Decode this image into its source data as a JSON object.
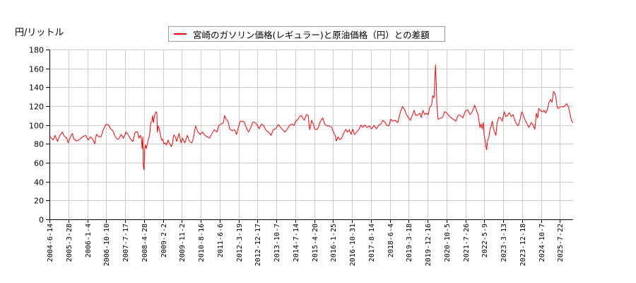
{
  "legend": {
    "label": "宮崎のガソリン価格(レギュラー)と原油価格（円）との差額",
    "color": "#ff0000"
  },
  "chart_data": {
    "type": "line",
    "title": "",
    "xlabel": "",
    "ylabel": "円/リットル",
    "ylim": [
      0,
      180
    ],
    "yticks": [
      0,
      20,
      40,
      60,
      80,
      100,
      120,
      140,
      160,
      180
    ],
    "x_unit": "decimal_year",
    "xlim": [
      2004.45,
      2026.1
    ],
    "xticks": [
      "2004-6-14",
      "2005-3-28",
      "2006-1-4",
      "2006-10-10",
      "2007-7-17",
      "2008-4-28",
      "2009-2-2",
      "2009-11-2",
      "2010-8-16",
      "2011-6-6",
      "2012-3-19",
      "2012-12-17",
      "2013-10-7",
      "2014-7-14",
      "2015-4-20",
      "2016-1-25",
      "2016-10-31",
      "2017-8-14",
      "2018-6-4",
      "2019-3-18",
      "2019-12-16",
      "2020-10-5",
      "2021-7-26",
      "2022-5-9",
      "2023-3-13",
      "2023-12-18",
      "2024-10-7",
      "2025-7-22"
    ],
    "grid": true,
    "legend_position": "top-center",
    "series": [
      {
        "name": "宮崎のガソリン価格(レギュラー)と原油価格（円）との差額",
        "color": "#ff0000",
        "x": [
          2004.47,
          2004.54,
          2004.6,
          2004.68,
          2004.78,
          2004.88,
          2004.98,
          2005.07,
          2005.17,
          2005.22,
          2005.32,
          2005.39,
          2005.46,
          2005.56,
          2005.66,
          2005.76,
          2005.85,
          2005.95,
          2006.05,
          2006.14,
          2006.24,
          2006.32,
          2006.39,
          2006.49,
          2006.58,
          2006.68,
          2006.78,
          2006.88,
          2006.97,
          2007.07,
          2007.17,
          2007.26,
          2007.31,
          2007.41,
          2007.51,
          2007.61,
          2007.7,
          2007.8,
          2007.9,
          2007.99,
          2008.09,
          2008.15,
          2008.2,
          2008.25,
          2008.28,
          2008.31,
          2008.33,
          2008.36,
          2008.39,
          2008.42,
          2008.46,
          2008.5,
          2008.54,
          2008.59,
          2008.64,
          2008.69,
          2008.72,
          2008.75,
          2008.8,
          2008.83,
          2008.86,
          2008.89,
          2008.91,
          2008.95,
          2008.99,
          2009.03,
          2009.08,
          2009.13,
          2009.18,
          2009.22,
          2009.29,
          2009.35,
          2009.42,
          2009.49,
          2009.54,
          2009.59,
          2009.66,
          2009.71,
          2009.81,
          2009.89,
          2009.95,
          2010.05,
          2010.15,
          2010.24,
          2010.34,
          2010.41,
          2010.49,
          2010.59,
          2010.68,
          2010.78,
          2010.88,
          2010.97,
          2011.07,
          2011.17,
          2011.27,
          2011.37,
          2011.46,
          2011.56,
          2011.64,
          2011.69,
          2011.76,
          2011.83,
          2011.9,
          2012.0,
          2012.1,
          2012.19,
          2012.26,
          2012.34,
          2012.44,
          2012.52,
          2012.58,
          2012.68,
          2012.78,
          2012.85,
          2012.94,
          2013.04,
          2013.12,
          2013.22,
          2013.31,
          2013.41,
          2013.51,
          2013.61,
          2013.7,
          2013.8,
          2013.92,
          2014.0,
          2014.09,
          2014.19,
          2014.29,
          2014.39,
          2014.48,
          2014.56,
          2014.63,
          2014.73,
          2014.79,
          2014.87,
          2014.92,
          2014.99,
          2015.07,
          2015.15,
          2015.18,
          2015.21,
          2015.29,
          2015.36,
          2015.41,
          2015.5,
          2015.57,
          2015.65,
          2015.75,
          2015.83,
          2015.92,
          2016.02,
          2016.12,
          2016.19,
          2016.26,
          2016.31,
          2016.38,
          2016.45,
          2016.53,
          2016.61,
          2016.7,
          2016.77,
          2016.84,
          2016.92,
          2016.99,
          2017.06,
          2017.16,
          2017.26,
          2017.33,
          2017.4,
          2017.48,
          2017.58,
          2017.68,
          2017.77,
          2017.87,
          2017.97,
          2018.07,
          2018.16,
          2018.23,
          2018.33,
          2018.43,
          2018.5,
          2018.55,
          2018.65,
          2018.75,
          2018.85,
          2018.91,
          2018.98,
          2019.04,
          2019.14,
          2019.21,
          2019.3,
          2019.37,
          2019.45,
          2019.53,
          2019.6,
          2019.69,
          2019.76,
          2019.82,
          2019.89,
          2019.96,
          2020.03,
          2020.11,
          2020.18,
          2020.25,
          2020.3,
          2020.35,
          2020.38,
          2020.41,
          2020.44,
          2020.47,
          2020.52,
          2020.6,
          2020.7,
          2020.79,
          2020.89,
          2020.99,
          2021.09,
          2021.18,
          2021.25,
          2021.35,
          2021.45,
          2021.54,
          2021.64,
          2021.74,
          2021.84,
          2021.93,
          2022.03,
          2022.1,
          2022.18,
          2022.2,
          2022.25,
          2022.3,
          2022.34,
          2022.39,
          2022.42,
          2022.47,
          2022.52,
          2022.57,
          2022.62,
          2022.66,
          2022.71,
          2022.76,
          2022.81,
          2022.86,
          2022.91,
          2022.96,
          2023.03,
          2023.1,
          2023.17,
          2023.25,
          2023.32,
          2023.39,
          2023.46,
          2023.54,
          2023.62,
          2023.69,
          2023.76,
          2023.83,
          2023.9,
          2023.98,
          2024.05,
          2024.12,
          2024.2,
          2024.27,
          2024.37,
          2024.44,
          2024.52,
          2024.58,
          2024.64,
          2024.68,
          2024.76,
          2024.84,
          2024.9,
          2024.97,
          2025.05,
          2025.1,
          2025.17,
          2025.23,
          2025.29,
          2025.34,
          2025.39,
          2025.44,
          2025.49,
          2025.56,
          2025.63,
          2025.71,
          2025.78,
          2025.83,
          2025.91,
          2025.98,
          2026.04,
          2026.1
        ],
        "values": [
          88,
          86,
          84,
          89,
          82.5,
          89,
          92.5,
          88,
          86,
          81,
          87.5,
          91,
          85,
          83,
          84,
          86,
          88,
          89,
          84,
          87.5,
          85,
          80,
          90,
          87.5,
          87.5,
          95,
          100.5,
          100.5,
          96,
          94,
          87.5,
          85,
          85,
          90,
          86,
          92.5,
          90,
          85,
          82.5,
          92.5,
          93,
          86,
          89,
          86,
          75,
          87.5,
          57.5,
          52.5,
          75,
          79,
          75,
          81,
          85,
          89,
          102.5,
          104,
          110,
          102.5,
          111,
          112.5,
          114,
          112.5,
          92.5,
          99,
          96,
          91,
          84,
          85,
          80,
          81,
          79,
          84,
          80,
          77,
          81,
          89.5,
          87.5,
          82.5,
          91,
          81,
          86,
          81,
          89,
          82.5,
          81,
          87.5,
          99,
          92.5,
          90,
          92.5,
          89,
          87.5,
          86,
          91,
          95,
          92.5,
          100,
          101,
          102.5,
          110,
          106,
          104,
          96,
          94,
          95,
          90,
          97.5,
          104,
          104,
          102.5,
          97.5,
          92.5,
          97.5,
          103,
          103,
          100,
          96,
          101,
          99,
          94,
          92.5,
          89,
          95,
          96,
          100.5,
          97.5,
          95,
          92.5,
          96,
          100,
          101,
          99.5,
          104,
          106,
          109,
          110,
          107.5,
          105,
          111,
          110,
          100,
          95,
          105,
          101,
          96,
          95,
          97.5,
          104,
          107.5,
          101,
          99,
          99,
          97.5,
          92.5,
          89,
          83,
          87.5,
          84.5,
          86,
          91,
          95.5,
          92.5,
          95,
          90,
          95.5,
          90,
          92.5,
          96,
          100,
          97.5,
          100,
          97.5,
          99,
          96,
          99.5,
          96,
          100,
          101,
          105,
          102.5,
          99,
          100,
          106,
          104,
          105,
          102.5,
          109,
          115,
          119.5,
          116,
          111,
          107.5,
          105,
          110,
          115.5,
          110,
          111,
          112.5,
          108,
          115.5,
          111,
          112.5,
          111,
          119.5,
          121,
          131,
          129,
          145,
          163.7,
          145,
          120,
          106,
          107,
          108,
          114,
          112.5,
          109,
          107,
          105.5,
          104,
          110.5,
          110,
          107.5,
          114.5,
          116,
          111,
          114,
          121,
          116,
          110,
          106,
          97.5,
          101,
          96,
          102.5,
          90,
          82.5,
          73.7,
          84,
          87.5,
          95,
          99,
          104,
          96,
          92.5,
          89,
          102.5,
          108,
          107.5,
          104,
          114,
          109,
          110,
          113,
          109,
          111,
          105,
          101,
          99,
          105,
          114,
          110,
          105,
          101,
          97.5,
          102.5,
          100,
          95.5,
          112.5,
          107.5,
          117.5,
          115,
          114,
          115.5,
          112.5,
          117.5,
          124,
          127,
          124,
          135.5,
          134,
          129,
          119,
          117.5,
          119,
          119.5,
          119,
          121,
          122.5,
          119,
          111,
          104,
          102.5
        ]
      }
    ]
  }
}
